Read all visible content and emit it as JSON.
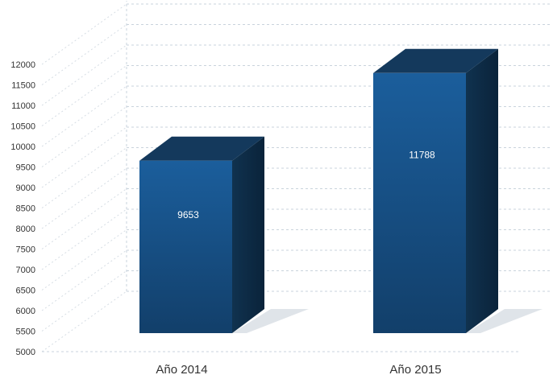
{
  "chart_data": {
    "type": "bar",
    "categories": [
      "Año 2014",
      "Año 2015"
    ],
    "values": [
      9653,
      11788
    ],
    "data_labels": [
      "9653",
      "11788"
    ],
    "y_ticks": [
      "5000",
      "5500",
      "6000",
      "6500",
      "7000",
      "7500",
      "8000",
      "8500",
      "9000",
      "9500",
      "10000",
      "10500",
      "11000",
      "11500",
      "12000"
    ],
    "ylim": [
      5000,
      12000
    ],
    "grid": true,
    "legend": "none",
    "three_d": true,
    "colors": {
      "front_top": "#1b5e9c",
      "front_bottom": "#123f6a",
      "side": "#0f2f4e",
      "top": "#14395c",
      "shadow": "#d7dde3"
    }
  }
}
